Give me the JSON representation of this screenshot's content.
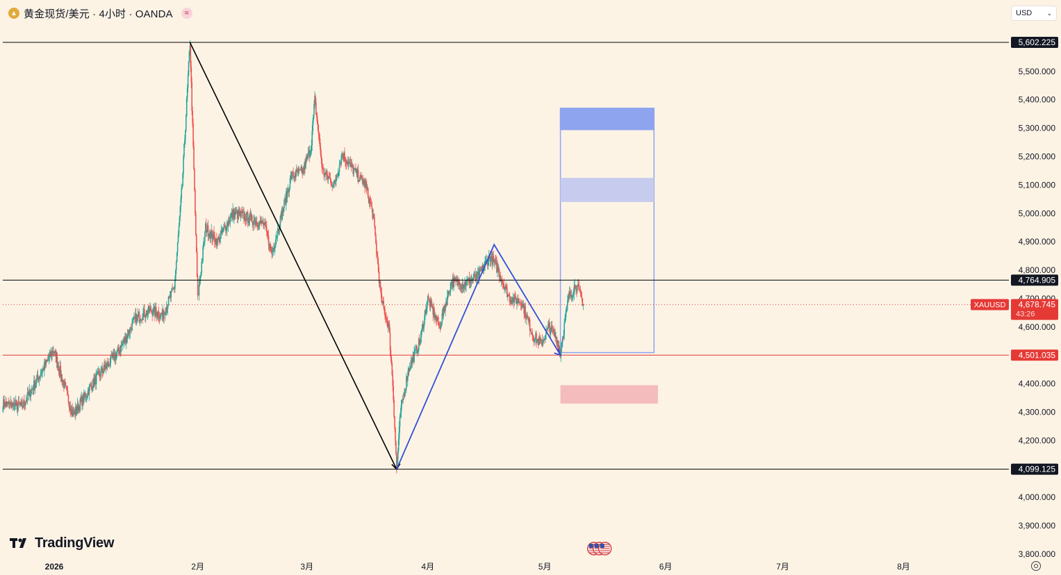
{
  "header": {
    "title": "黄金现货/美元 · 4小时 · OANDA",
    "symbol_icon": "gold-coin-icon",
    "status_icon": "≈"
  },
  "currency_select": {
    "value": "USD"
  },
  "branding": {
    "name": "TradingView"
  },
  "colors": {
    "background": "#fcf3e5",
    "up_candle": "#26a69a",
    "down_candle": "#ef5350",
    "blue_zone": "#8ea4ef",
    "light_blue_zone": "#c7cbee",
    "pink_zone": "#f4bcbc",
    "drawing_blue": "#2f4fd8",
    "drawing_black": "#000000",
    "current_price": "#e53935"
  },
  "chart_data": {
    "type": "candlestick",
    "symbol": "XAUUSD",
    "ylim": [
      3800,
      5650
    ],
    "y_ticks": [
      "5,500.000",
      "5,400.000",
      "5,300.000",
      "5,200.000",
      "5,100.000",
      "5,000.000",
      "4,900.000",
      "4,800.000",
      "4,700.000",
      "4,600.000",
      "4,400.000",
      "4,300.000",
      "4,200.000",
      "4,000.000",
      "3,900.000",
      "3,800.000"
    ],
    "y_tick_values": [
      5500,
      5400,
      5300,
      5200,
      5100,
      5000,
      4900,
      4800,
      4700,
      4600,
      4400,
      4300,
      4200,
      4000,
      3900,
      3800
    ],
    "x_ticks": [
      "2026",
      "2月",
      "3月",
      "4月",
      "5月",
      "6月",
      "7月",
      "8月"
    ],
    "x_tick_dates": [
      "2026-01-01",
      "2026-02-01",
      "2026-03-01",
      "2026-04-01",
      "2026-05-01",
      "2026-06-01",
      "2026-07-01",
      "2026-08-01"
    ],
    "x_range_dates": [
      "2025-12-13",
      "2026-08-28"
    ],
    "price_series_anchors": [
      [
        "2025-12-13",
        4330
      ],
      [
        "2025-12-18",
        4320
      ],
      [
        "2025-12-24",
        4470
      ],
      [
        "2025-12-26",
        4520
      ],
      [
        "2025-12-31",
        4290
      ],
      [
        "2026-01-06",
        4420
      ],
      [
        "2026-01-12",
        4520
      ],
      [
        "2026-01-16",
        4630
      ],
      [
        "2026-01-20",
        4660
      ],
      [
        "2026-01-23",
        4640
      ],
      [
        "2026-01-26",
        4740
      ],
      [
        "2026-01-28",
        5100
      ],
      [
        "2026-01-29",
        5350
      ],
      [
        "2026-01-30",
        5602
      ],
      [
        "2026-01-31",
        5150
      ],
      [
        "2026-02-01",
        4700
      ],
      [
        "2026-02-03",
        4950
      ],
      [
        "2026-02-06",
        4900
      ],
      [
        "2026-02-10",
        5000
      ],
      [
        "2026-02-13",
        4990
      ],
      [
        "2026-02-18",
        4960
      ],
      [
        "2026-02-20",
        4860
      ],
      [
        "2026-02-25",
        5130
      ],
      [
        "2026-02-28",
        5150
      ],
      [
        "2026-03-02",
        5230
      ],
      [
        "2026-03-03",
        5400
      ],
      [
        "2026-03-05",
        5150
      ],
      [
        "2026-03-08",
        5100
      ],
      [
        "2026-03-10",
        5210
      ],
      [
        "2026-03-13",
        5150
      ],
      [
        "2026-03-16",
        5100
      ],
      [
        "2026-03-18",
        4990
      ],
      [
        "2026-03-20",
        4700
      ],
      [
        "2026-03-22",
        4600
      ],
      [
        "2026-03-23",
        4400
      ],
      [
        "2026-03-24",
        4100
      ],
      [
        "2026-03-25",
        4300
      ],
      [
        "2026-03-27",
        4450
      ],
      [
        "2026-03-30",
        4550
      ],
      [
        "2026-04-01",
        4700
      ],
      [
        "2026-04-04",
        4600
      ],
      [
        "2026-04-07",
        4760
      ],
      [
        "2026-04-10",
        4750
      ],
      [
        "2026-04-14",
        4780
      ],
      [
        "2026-04-17",
        4850
      ],
      [
        "2026-04-19",
        4800
      ],
      [
        "2026-04-22",
        4700
      ],
      [
        "2026-04-25",
        4690
      ],
      [
        "2026-04-28",
        4570
      ],
      [
        "2026-04-30",
        4540
      ],
      [
        "2026-05-02",
        4600
      ],
      [
        "2026-05-04",
        4560
      ],
      [
        "2026-05-05",
        4510
      ],
      [
        "2026-05-07",
        4700
      ],
      [
        "2026-05-09",
        4750
      ],
      [
        "2026-05-11",
        4678.745
      ]
    ],
    "horizontal_lines": [
      {
        "price": 5602.225,
        "label": "5,602.225",
        "style": "black"
      },
      {
        "price": 4764.905,
        "label": "4,764.905",
        "style": "black"
      },
      {
        "price": 4501.035,
        "label": "4,501.035",
        "style": "red"
      },
      {
        "price": 4099.125,
        "label": "4,099.125",
        "style": "black"
      }
    ],
    "current_price": {
      "price": 4678.745,
      "label": "4,678.745",
      "symbol": "XAUUSD",
      "countdown": "43:26"
    },
    "trend_lines": [
      {
        "color": "black",
        "from": [
          "2026-01-30",
          5602
        ],
        "to": [
          "2026-03-24",
          4099
        ]
      },
      {
        "color": "blue",
        "points": [
          [
            "2026-03-24",
            4099
          ],
          [
            "2026-04-18",
            4890
          ],
          [
            "2026-05-05",
            4501
          ]
        ]
      }
    ],
    "zones": [
      {
        "name": "target-box",
        "from": "2026-05-05",
        "to": "2026-05-29",
        "price_low": 4510,
        "price_high": 5370,
        "style": "outline"
      },
      {
        "name": "top-blue-zone",
        "from": "2026-05-05",
        "to": "2026-05-29",
        "price_low": 5295,
        "price_high": 5370,
        "style": "blue"
      },
      {
        "name": "mid-blue-zone",
        "from": "2026-05-05",
        "to": "2026-05-29",
        "price_low": 5040,
        "price_high": 5125,
        "style": "light-blue"
      },
      {
        "name": "support-pink-zone",
        "from": "2026-05-05",
        "to": "2026-05-30",
        "price_low": 4330,
        "price_high": 4395,
        "style": "pink"
      }
    ],
    "event_marker": {
      "date": "2026-05-15",
      "icon": "us-flag-icon"
    }
  }
}
